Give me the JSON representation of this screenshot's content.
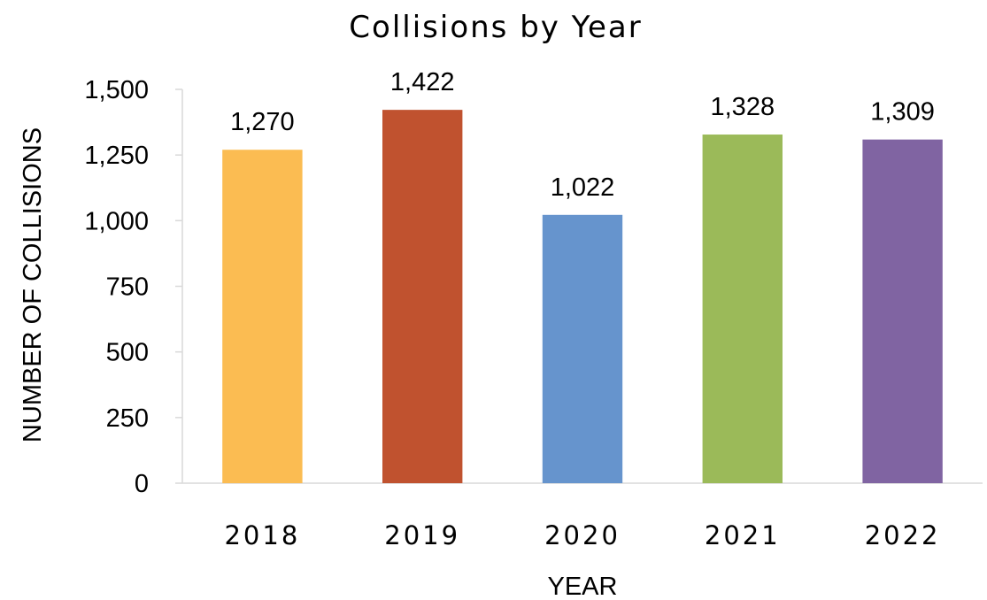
{
  "chart_data": {
    "type": "bar",
    "title": "Collisions by Year",
    "xlabel": "YEAR",
    "ylabel": "NUMBER OF COLLISIONS",
    "categories": [
      "2018",
      "2019",
      "2020",
      "2021",
      "2022"
    ],
    "values": [
      1270,
      1422,
      1022,
      1328,
      1309
    ],
    "data_labels": [
      "1,270",
      "1,422",
      "1,022",
      "1,328",
      "1,309"
    ],
    "bar_colors": [
      "#FBBC52",
      "#C0522F",
      "#6694CD",
      "#9BBA59",
      "#8064A2"
    ],
    "yticks": [
      0,
      250,
      500,
      750,
      1000,
      1250,
      1500
    ],
    "ytick_labels": [
      "0",
      "250",
      "500",
      "750",
      "1,000",
      "1,250",
      "1,500"
    ],
    "ylim": [
      0,
      1500
    ],
    "grid": false,
    "legend": "none"
  }
}
